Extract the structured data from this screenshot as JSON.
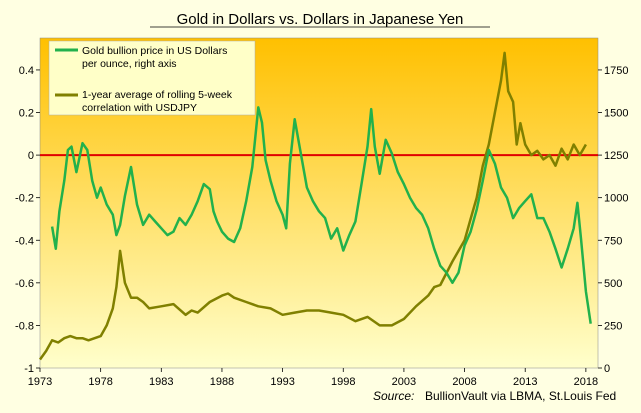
{
  "chart_data": {
    "type": "line",
    "title": "Gold in Dollars vs. Dollars in Japanese Yen",
    "source_label": "Source:",
    "source_text": "BullionVault via LBMA, St.Louis Fed",
    "x_ticks": [
      "1973",
      "1978",
      "1983",
      "1988",
      "1993",
      "1998",
      "2003",
      "2008",
      "2013",
      "2018"
    ],
    "y_left_ticks": [
      "0.4",
      "0.2",
      "0",
      "-0.2",
      "-0.4",
      "-0.6",
      "-0.8",
      "-1"
    ],
    "y_right_ticks": [
      "1750",
      "1500",
      "1250",
      "1000",
      "750",
      "500",
      "250",
      "0"
    ],
    "xlim": [
      1973,
      2019
    ],
    "ylim_left": [
      -1,
      0.55
    ],
    "ylim_right": [
      0,
      1937.5
    ],
    "zero_line": 0,
    "legend_position": "top-left",
    "colors": {
      "gold_series": "#22b14c",
      "correlation_series": "#808000",
      "zero_line": "#e00000",
      "bg_top": "#ffc000",
      "bg_bottom": "#ffffcc"
    },
    "series": [
      {
        "name": "Gold bullion price in US Dollars per ounce, right axis",
        "axis": "right",
        "x": [
          1974.0,
          1974.3,
          1974.6,
          1975.0,
          1975.3,
          1975.6,
          1976.0,
          1976.5,
          1976.9,
          1977.3,
          1977.7,
          1978.0,
          1978.5,
          1979.0,
          1979.3,
          1979.6,
          1980.0,
          1980.5,
          1981.0,
          1981.5,
          1982.0,
          1982.5,
          1983.0,
          1983.5,
          1984.0,
          1984.5,
          1985.0,
          1985.5,
          1986.0,
          1986.5,
          1987.0,
          1987.3,
          1987.6,
          1988.0,
          1988.5,
          1989.0,
          1989.5,
          1990.0,
          1990.5,
          1991.0,
          1991.3,
          1991.6,
          1992.0,
          1992.5,
          1993.0,
          1993.3,
          1993.6,
          1994.0,
          1994.5,
          1995.0,
          1995.5,
          1996.0,
          1996.5,
          1997.0,
          1997.5,
          1998.0,
          1998.5,
          1999.0,
          1999.5,
          2000.0,
          2000.3,
          2000.6,
          2001.0,
          2001.5,
          2002.0,
          2002.5,
          2003.0,
          2003.5,
          2004.0,
          2004.5,
          2005.0,
          2005.5,
          2006.0,
          2006.5,
          2007.0,
          2007.5,
          2008.0,
          2008.5,
          2009.0,
          2009.5,
          2010.0,
          2010.5,
          2011.0,
          2011.5,
          2012.0,
          2012.5,
          2013.0,
          2013.5,
          2014.0,
          2014.5,
          2015.0,
          2015.5,
          2016.0,
          2016.5,
          2017.0,
          2017.3,
          2017.6,
          2018.0,
          2018.4
        ],
        "values": [
          830,
          700,
          920,
          1100,
          1280,
          1300,
          1150,
          1320,
          1280,
          1100,
          1000,
          1060,
          960,
          900,
          780,
          840,
          1010,
          1180,
          960,
          840,
          900,
          860,
          820,
          780,
          800,
          880,
          840,
          900,
          980,
          1080,
          1050,
          920,
          860,
          800,
          760,
          740,
          820,
          980,
          1180,
          1530,
          1440,
          1220,
          1100,
          980,
          900,
          820,
          1200,
          1460,
          1260,
          1060,
          980,
          920,
          880,
          760,
          820,
          690,
          780,
          860,
          1080,
          1300,
          1520,
          1300,
          1140,
          1340,
          1260,
          1150,
          1080,
          1000,
          940,
          900,
          820,
          700,
          600,
          560,
          500,
          560,
          720,
          800,
          930,
          1100,
          1280,
          1200,
          1060,
          1000,
          880,
          940,
          980,
          1020,
          880,
          880,
          800,
          700,
          590,
          700,
          820,
          970,
          760,
          450,
          260
        ]
      },
      {
        "name": "1-year average of rolling 5-week correlation with USDJPY",
        "axis": "left",
        "x": [
          1973.0,
          1973.5,
          1974.0,
          1974.5,
          1975.0,
          1975.5,
          1976.0,
          1976.5,
          1977.0,
          1977.5,
          1978.0,
          1978.5,
          1979.0,
          1979.3,
          1979.6,
          1980.0,
          1980.5,
          1981.0,
          1981.5,
          1982.0,
          1983.0,
          1984.0,
          1985.0,
          1985.5,
          1986.0,
          1987.0,
          1988.0,
          1988.5,
          1989.0,
          1990.0,
          1991.0,
          1992.0,
          1993.0,
          1994.0,
          1995.0,
          1996.0,
          1997.0,
          1998.0,
          1999.0,
          2000.0,
          2001.0,
          2002.0,
          2003.0,
          2004.0,
          2005.0,
          2005.5,
          2006.0,
          2007.0,
          2008.0,
          2008.5,
          2009.0,
          2009.5,
          2010.0,
          2010.5,
          2011.0,
          2011.3,
          2011.6,
          2012.0,
          2012.3,
          2012.6,
          2013.0,
          2013.5,
          2014.0,
          2014.5,
          2015.0,
          2015.5,
          2016.0,
          2016.5,
          2017.0,
          2017.5,
          2018.0
        ],
        "values": [
          -0.96,
          -0.92,
          -0.87,
          -0.88,
          -0.86,
          -0.85,
          -0.86,
          -0.86,
          -0.87,
          -0.86,
          -0.85,
          -0.8,
          -0.72,
          -0.62,
          -0.45,
          -0.6,
          -0.67,
          -0.67,
          -0.69,
          -0.72,
          -0.71,
          -0.7,
          -0.75,
          -0.73,
          -0.74,
          -0.69,
          -0.66,
          -0.65,
          -0.67,
          -0.69,
          -0.71,
          -0.72,
          -0.75,
          -0.74,
          -0.73,
          -0.73,
          -0.74,
          -0.75,
          -0.78,
          -0.76,
          -0.8,
          -0.8,
          -0.77,
          -0.71,
          -0.66,
          -0.62,
          -0.61,
          -0.5,
          -0.4,
          -0.3,
          -0.2,
          -0.05,
          0.05,
          0.2,
          0.35,
          0.48,
          0.3,
          0.25,
          0.05,
          0.15,
          0.05,
          0.0,
          0.02,
          -0.02,
          0.0,
          -0.05,
          0.03,
          -0.02,
          0.05,
          0.0,
          0.05
        ]
      }
    ]
  }
}
